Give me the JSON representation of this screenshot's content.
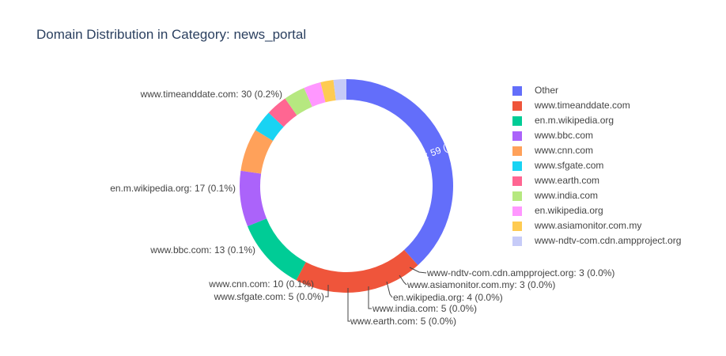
{
  "chart_data": {
    "type": "pie",
    "hole": true,
    "title": "Domain Distribution in Category: news_portal",
    "slices": [
      {
        "label": "Other",
        "value": 59,
        "percent": "0.4%",
        "color": "#636efa",
        "text": "Other: 59 (0.4%)"
      },
      {
        "label": "www.timeanddate.com",
        "value": 30,
        "percent": "0.2%",
        "color": "#ef553b",
        "text": "www.timeanddate.com: 30 (0.2%)"
      },
      {
        "label": "en.m.wikipedia.org",
        "value": 17,
        "percent": "0.1%",
        "color": "#00cc96",
        "text": "en.m.wikipedia.org: 17 (0.1%)"
      },
      {
        "label": "www.bbc.com",
        "value": 13,
        "percent": "0.1%",
        "color": "#ab63fa",
        "text": "www.bbc.com: 13 (0.1%)"
      },
      {
        "label": "www.cnn.com",
        "value": 10,
        "percent": "0.1%",
        "color": "#ffa15a",
        "text": "www.cnn.com: 10 (0.1%)"
      },
      {
        "label": "www.sfgate.com",
        "value": 5,
        "percent": "0.0%",
        "color": "#19d3f3",
        "text": "www.sfgate.com: 5 (0.0%)"
      },
      {
        "label": "www.earth.com",
        "value": 5,
        "percent": "0.0%",
        "color": "#ff6692",
        "text": "www.earth.com: 5 (0.0%)"
      },
      {
        "label": "www.india.com",
        "value": 5,
        "percent": "0.0%",
        "color": "#b6e880",
        "text": "www.india.com: 5 (0.0%)"
      },
      {
        "label": "en.wikipedia.org",
        "value": 4,
        "percent": "0.0%",
        "color": "#ff97ff",
        "text": "en.wikipedia.org: 4 (0.0%)"
      },
      {
        "label": "www.asiamonitor.com.my",
        "value": 3,
        "percent": "0.0%",
        "color": "#fecb52",
        "text": "www.asiamonitor.com.my: 3 (0.0%)"
      },
      {
        "label": "www-ndtv-com.cdn.ampproject.org",
        "value": 3,
        "percent": "0.0%",
        "color": "#c6cbf8",
        "text": "www-ndtv-com.cdn.ampproject.org: 3 (0.0%)"
      }
    ],
    "legend_position": "right"
  }
}
